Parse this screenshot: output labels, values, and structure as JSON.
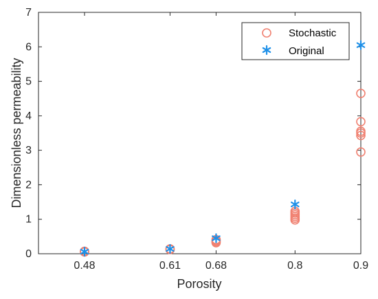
{
  "chart_data": {
    "type": "scatter",
    "xlabel": "Porosity",
    "ylabel": "Dimensionless permeability",
    "xlim": [
      0.41,
      0.9
    ],
    "ylim": [
      0,
      7
    ],
    "xticks": [
      0.48,
      0.61,
      0.68,
      0.8,
      0.9
    ],
    "xtick_labels": [
      "0.48",
      "0.61",
      "0.68",
      "0.8",
      "0.9"
    ],
    "yticks": [
      0,
      1,
      2,
      3,
      4,
      5,
      6,
      7
    ],
    "ytick_labels": [
      "0",
      "1",
      "2",
      "3",
      "4",
      "5",
      "6",
      "7"
    ],
    "grid": false,
    "legend_position": "top-right",
    "series": [
      {
        "name": "Stochastic",
        "marker": "circle-open",
        "color": "#F08070",
        "points": [
          [
            0.48,
            0.05
          ],
          [
            0.48,
            0.06
          ],
          [
            0.48,
            0.07
          ],
          [
            0.61,
            0.12
          ],
          [
            0.61,
            0.13
          ],
          [
            0.61,
            0.14
          ],
          [
            0.68,
            0.32
          ],
          [
            0.68,
            0.35
          ],
          [
            0.68,
            0.38
          ],
          [
            0.68,
            0.41
          ],
          [
            0.8,
            0.98
          ],
          [
            0.8,
            1.03
          ],
          [
            0.8,
            1.08
          ],
          [
            0.8,
            1.13
          ],
          [
            0.8,
            1.18
          ],
          [
            0.8,
            1.23
          ],
          [
            0.9,
            2.95
          ],
          [
            0.9,
            3.43
          ],
          [
            0.9,
            3.5
          ],
          [
            0.9,
            3.55
          ],
          [
            0.9,
            3.83
          ],
          [
            0.9,
            4.65
          ]
        ]
      },
      {
        "name": "Original",
        "marker": "asterisk",
        "color": "#1E90E8",
        "points": [
          [
            0.48,
            0.06
          ],
          [
            0.61,
            0.14
          ],
          [
            0.68,
            0.45
          ],
          [
            0.8,
            1.43
          ],
          [
            0.9,
            6.05
          ]
        ]
      }
    ]
  }
}
